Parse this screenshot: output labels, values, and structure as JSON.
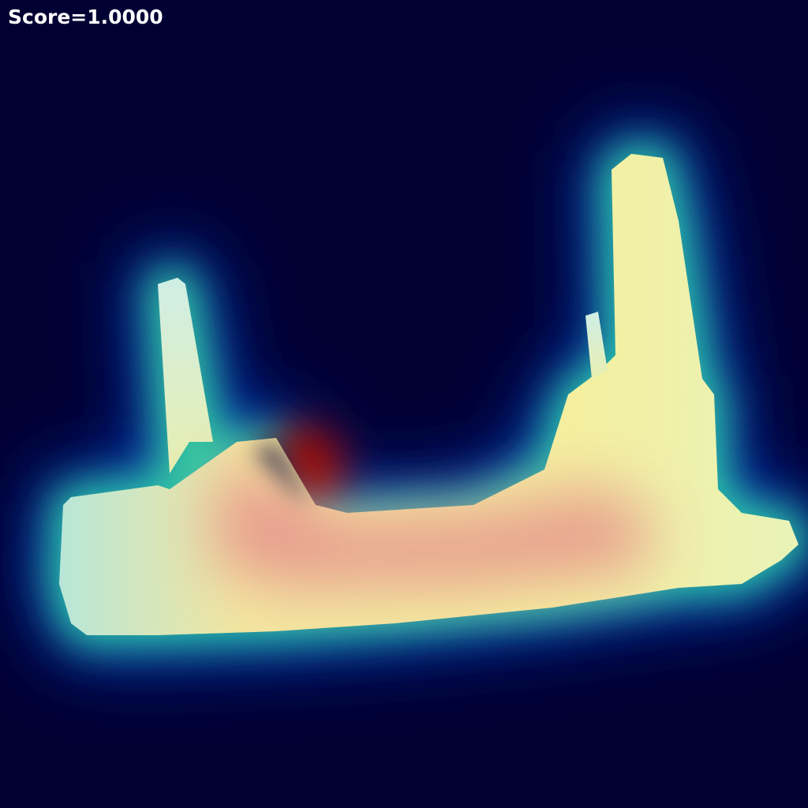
{
  "caption": "Score=1.0000"
}
